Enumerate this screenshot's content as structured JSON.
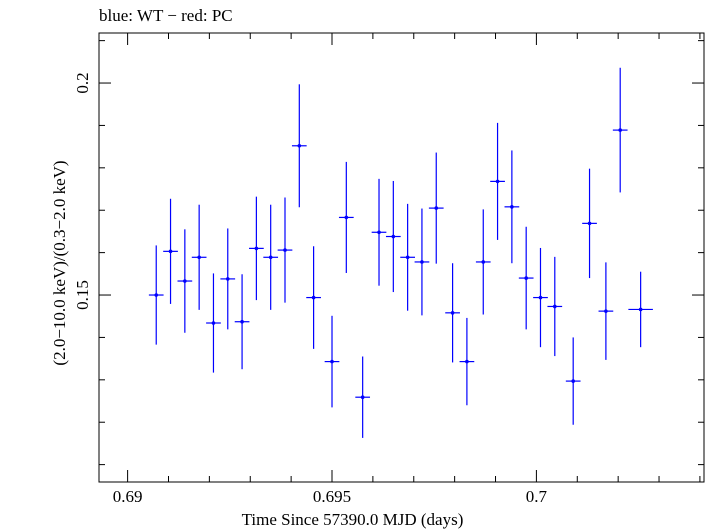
{
  "chart_data": {
    "type": "scatter",
    "title": "blue: WT − red: PC",
    "xlabel": "Time Since 57390.0 MJD (days)",
    "ylabel": "(2.0−10.0 keV)/(0.3−2.0 keV)",
    "xlim": [
      0.6893,
      0.7041
    ],
    "ylim": [
      0.1059,
      0.2118
    ],
    "x_ticks": [
      0.69,
      0.695,
      0.7
    ],
    "x_tick_labels": [
      "0.69",
      "0.695",
      "0.7"
    ],
    "y_ticks": [
      0.15,
      0.2
    ],
    "y_tick_labels": [
      "0.15",
      "0.2"
    ],
    "grid": false,
    "colors": {
      "WT": "#0000ff"
    },
    "series": [
      {
        "name": "WT",
        "points": [
          {
            "x": 0.6907,
            "xerr": 0.00018,
            "y": 0.15,
            "yerr": 0.0117
          },
          {
            "x": 0.69105,
            "xerr": 0.00018,
            "y": 0.1603,
            "yerr": 0.0124
          },
          {
            "x": 0.6914,
            "xerr": 0.00018,
            "y": 0.1533,
            "yerr": 0.0122
          },
          {
            "x": 0.69175,
            "xerr": 0.00018,
            "y": 0.1589,
            "yerr": 0.0124
          },
          {
            "x": 0.6921,
            "xerr": 0.00018,
            "y": 0.1434,
            "yerr": 0.0117
          },
          {
            "x": 0.69245,
            "xerr": 0.00018,
            "y": 0.1538,
            "yerr": 0.0119
          },
          {
            "x": 0.6928,
            "xerr": 0.00018,
            "y": 0.1437,
            "yerr": 0.0112
          },
          {
            "x": 0.69315,
            "xerr": 0.00018,
            "y": 0.161,
            "yerr": 0.0122
          },
          {
            "x": 0.6935,
            "xerr": 0.00018,
            "y": 0.1589,
            "yerr": 0.0124
          },
          {
            "x": 0.69385,
            "xerr": 0.00018,
            "y": 0.1606,
            "yerr": 0.0124
          },
          {
            "x": 0.6942,
            "xerr": 0.00018,
            "y": 0.1852,
            "yerr": 0.0145
          },
          {
            "x": 0.69455,
            "xerr": 0.00018,
            "y": 0.1494,
            "yerr": 0.0121
          },
          {
            "x": 0.695,
            "xerr": 0.00018,
            "y": 0.1343,
            "yerr": 0.0108
          },
          {
            "x": 0.69535,
            "xerr": 0.00018,
            "y": 0.1683,
            "yerr": 0.0131
          },
          {
            "x": 0.69575,
            "xerr": 0.00018,
            "y": 0.1259,
            "yerr": 0.0096
          },
          {
            "x": 0.69615,
            "xerr": 0.00018,
            "y": 0.1648,
            "yerr": 0.0126
          },
          {
            "x": 0.6965,
            "xerr": 0.00018,
            "y": 0.1638,
            "yerr": 0.0131
          },
          {
            "x": 0.69685,
            "xerr": 0.00018,
            "y": 0.1589,
            "yerr": 0.0126
          },
          {
            "x": 0.6972,
            "xerr": 0.00018,
            "y": 0.1578,
            "yerr": 0.0126
          },
          {
            "x": 0.69755,
            "xerr": 0.00018,
            "y": 0.1705,
            "yerr": 0.0131
          },
          {
            "x": 0.69795,
            "xerr": 0.00018,
            "y": 0.1458,
            "yerr": 0.0117
          },
          {
            "x": 0.6983,
            "xerr": 0.00018,
            "y": 0.1343,
            "yerr": 0.0103
          },
          {
            "x": 0.6987,
            "xerr": 0.00018,
            "y": 0.1578,
            "yerr": 0.0124
          },
          {
            "x": 0.69905,
            "xerr": 0.00018,
            "y": 0.1768,
            "yerr": 0.0138
          },
          {
            "x": 0.6994,
            "xerr": 0.00018,
            "y": 0.1708,
            "yerr": 0.0133
          },
          {
            "x": 0.69975,
            "xerr": 0.00018,
            "y": 0.154,
            "yerr": 0.0121
          },
          {
            "x": 0.7001,
            "xerr": 0.00018,
            "y": 0.1494,
            "yerr": 0.0117
          },
          {
            "x": 0.70045,
            "xerr": 0.00018,
            "y": 0.1473,
            "yerr": 0.0117
          },
          {
            "x": 0.7009,
            "xerr": 0.00018,
            "y": 0.1297,
            "yerr": 0.0103
          },
          {
            "x": 0.7013,
            "xerr": 0.00018,
            "y": 0.1669,
            "yerr": 0.0129
          },
          {
            "x": 0.7017,
            "xerr": 0.00018,
            "y": 0.1462,
            "yerr": 0.0115
          },
          {
            "x": 0.70205,
            "xerr": 0.00018,
            "y": 0.1889,
            "yerr": 0.0147
          },
          {
            "x": 0.70255,
            "xerr": 0.0003,
            "y": 0.1466,
            "yerr": 0.0089
          }
        ]
      }
    ]
  }
}
